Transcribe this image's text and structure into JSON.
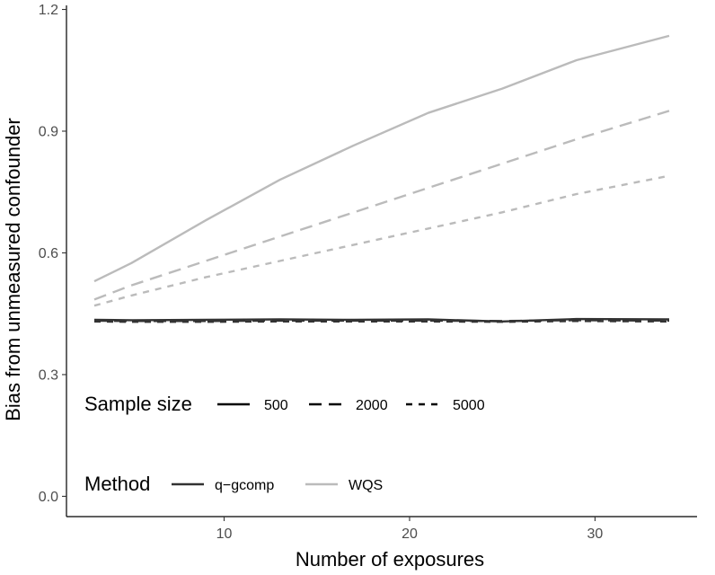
{
  "chart_data": {
    "type": "line",
    "xlabel": "Number of exposures",
    "ylabel": "Bias from unmeasured confounder",
    "xlim": [
      1.5,
      35.5
    ],
    "ylim": [
      -0.05,
      1.21
    ],
    "x_ticks": [
      10,
      20,
      30
    ],
    "y_ticks": [
      0.0,
      0.3,
      0.6,
      0.9,
      1.2
    ],
    "x_tick_labels": [
      "10",
      "20",
      "30"
    ],
    "y_tick_labels": [
      "0.0",
      "0.3",
      "0.6",
      "0.9",
      "1.2"
    ],
    "grid": false,
    "legend_sample_size": {
      "title": "Sample size",
      "entries": [
        {
          "label": "500",
          "dash": "solid"
        },
        {
          "label": "2000",
          "dash": "longdash"
        },
        {
          "label": "5000",
          "dash": "dashed"
        }
      ]
    },
    "legend_method": {
      "title": "Method",
      "entries": [
        {
          "label": "q−gcomp",
          "color": "#333333"
        },
        {
          "label": "WQS",
          "color": "#bbbbbb"
        }
      ]
    },
    "series": [
      {
        "method": "WQS",
        "sample_size": "500",
        "color": "#bbbbbb",
        "dash": "solid",
        "x": [
          3,
          5,
          9,
          13,
          17,
          21,
          25,
          29,
          34
        ],
        "y": [
          0.53,
          0.575,
          0.68,
          0.78,
          0.865,
          0.945,
          1.005,
          1.075,
          1.135
        ]
      },
      {
        "method": "WQS",
        "sample_size": "2000",
        "color": "#bbbbbb",
        "dash": "longdash",
        "x": [
          3,
          5,
          9,
          13,
          17,
          21,
          25,
          29,
          34
        ],
        "y": [
          0.485,
          0.52,
          0.58,
          0.64,
          0.7,
          0.76,
          0.82,
          0.88,
          0.95
        ]
      },
      {
        "method": "WQS",
        "sample_size": "5000",
        "color": "#bbbbbb",
        "dash": "dashed",
        "x": [
          3,
          5,
          9,
          13,
          17,
          21,
          25,
          29,
          34
        ],
        "y": [
          0.47,
          0.495,
          0.54,
          0.58,
          0.62,
          0.66,
          0.7,
          0.745,
          0.79
        ]
      },
      {
        "method": "q−gcomp",
        "sample_size": "500",
        "color": "#333333",
        "dash": "solid",
        "x": [
          3,
          5,
          9,
          13,
          17,
          21,
          25,
          29,
          34
        ],
        "y": [
          0.435,
          0.434,
          0.435,
          0.436,
          0.435,
          0.436,
          0.431,
          0.437,
          0.436
        ]
      },
      {
        "method": "q−gcomp",
        "sample_size": "2000",
        "color": "#333333",
        "dash": "longdash",
        "x": [
          3,
          5,
          9,
          13,
          17,
          21,
          25,
          29,
          34
        ],
        "y": [
          0.433,
          0.432,
          0.432,
          0.433,
          0.433,
          0.433,
          0.432,
          0.434,
          0.433
        ]
      },
      {
        "method": "q−gcomp",
        "sample_size": "5000",
        "color": "#333333",
        "dash": "dashed",
        "x": [
          3,
          5,
          9,
          13,
          17,
          21,
          25,
          29,
          34
        ],
        "y": [
          0.431,
          0.43,
          0.43,
          0.431,
          0.431,
          0.431,
          0.43,
          0.432,
          0.431
        ]
      }
    ]
  }
}
